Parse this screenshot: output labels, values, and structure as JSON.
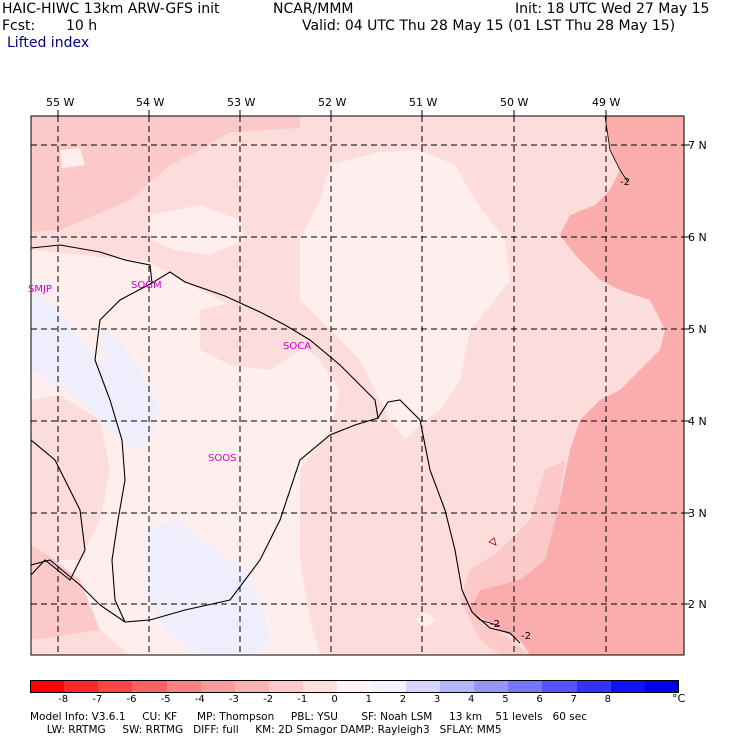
{
  "header": {
    "model_title": "HAIC-HIWC 13km ARW-GFS init",
    "org": "NCAR/MMM",
    "init_text": "Init: 18 UTC Wed 27 May 15",
    "fcst_label": "Fcst:",
    "fcst_value": "10 h",
    "valid_text": "Valid: 04 UTC Thu 28 May 15 (01 LST Thu 28 May 15)",
    "field_name": "Lifted index"
  },
  "map": {
    "lon_labels": [
      "55 W",
      "54 W",
      "53 W",
      "52 W",
      "51 W",
      "50 W",
      "49 W"
    ],
    "lat_labels": [
      "7 N",
      "6 N",
      "5 N",
      "4 N",
      "3 N",
      "2 N"
    ],
    "stations": [
      "SMJP",
      "SOGM",
      "SOCA",
      "SOOS"
    ],
    "contour_labels": [
      "-2",
      "-2",
      "-2"
    ],
    "field_colors": {
      "lt_neg3": "#fbadad",
      "neg2_to_neg3": "#fcc9c9",
      "neg1_to_neg2": "#fddcdc",
      "zero_to_neg1": "#ffeeee",
      "zero_to_1": "#eeeefc"
    }
  },
  "colorbar": {
    "tick_labels": [
      "-8",
      "-7",
      "-6",
      "-5",
      "-4",
      "-3",
      "-2",
      "-1",
      "0",
      "1",
      "2",
      "3",
      "4",
      "5",
      "6",
      "7",
      "8"
    ],
    "unit": "°C",
    "colors": [
      "#ff0000",
      "#fc2828",
      "#fb4646",
      "#fb6464",
      "#fb8282",
      "#fb9c9c",
      "#fbb2b2",
      "#fccaca",
      "#ffe0e0",
      "#fff4f4",
      "#f2f2ff",
      "#d6d6fc",
      "#b6b6fa",
      "#9696fa",
      "#7676fa",
      "#5454fa",
      "#3232fa",
      "#1010fa",
      "#0000f0"
    ]
  },
  "footer": {
    "line1": "Model Info: V3.6.1     CU: KF      MP: Thompson     PBL: YSU       SF: Noah LSM     13 km    51 levels   60 sec",
    "line2": "     LW: RRTMG     SW: RRTMG   DIFF: full     KM: 2D Smagor DAMP: Rayleigh3   SFLAY: MM5"
  }
}
